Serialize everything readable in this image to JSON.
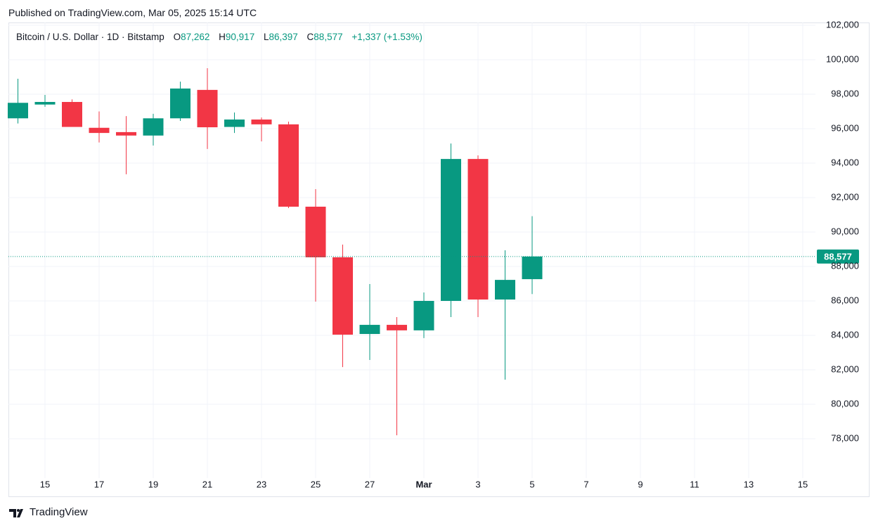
{
  "published": "Published on TradingView.com, Mar 05, 2025 15:14 UTC",
  "brand": "TradingView",
  "chart_data": {
    "type": "candlestick",
    "header": {
      "symbol": "Bitcoin / U.S. Dollar · 1D · Bitstamp",
      "open_key": "O",
      "open": "87,262",
      "high_key": "H",
      "high": "90,917",
      "low_key": "L",
      "low": "86,397",
      "close_key": "C",
      "close": "88,577",
      "change": "+1,337 (+1.53%)"
    },
    "categories": [
      null,
      "15",
      null,
      "17",
      null,
      "19",
      null,
      "21",
      null,
      "23",
      null,
      "25",
      null,
      "27",
      null,
      "Mar",
      null,
      "3",
      null,
      "5",
      null,
      "7",
      null,
      "9",
      null,
      "11",
      null,
      "13",
      null,
      "15"
    ],
    "open": [
      96600,
      97400,
      97550,
      96050,
      95800,
      95600,
      96600,
      98250,
      96100,
      96530,
      96250,
      91470,
      88530,
      84080,
      84610,
      84290,
      86000,
      94240,
      86080,
      87262,
      null,
      null,
      null,
      null,
      null,
      null,
      null,
      null,
      null,
      null
    ],
    "high": [
      98900,
      97960,
      97700,
      97000,
      96730,
      96860,
      98730,
      99510,
      96940,
      96650,
      96410,
      92490,
      89270,
      86980,
      85060,
      86490,
      95140,
      94450,
      88940,
      90917,
      null,
      null,
      null,
      null,
      null,
      null,
      null,
      null,
      null,
      null
    ],
    "low": [
      96300,
      97270,
      96100,
      95200,
      93350,
      95020,
      96450,
      94820,
      95750,
      95260,
      91390,
      85960,
      82160,
      82570,
      78200,
      83840,
      85060,
      85060,
      81430,
      86397,
      null,
      null,
      null,
      null,
      null,
      null,
      null,
      null,
      null,
      null
    ],
    "close": [
      97500,
      97550,
      96100,
      95750,
      95600,
      96600,
      98330,
      96080,
      96530,
      96250,
      91470,
      88530,
      84040,
      84610,
      84290,
      86000,
      94240,
      86080,
      87220,
      88577,
      null,
      null,
      null,
      null,
      null,
      null,
      null,
      null,
      null,
      null
    ],
    "up_color": "#089981",
    "down_color": "#f23645",
    "last_price": {
      "value": 88577,
      "label": "88,577"
    },
    "ylim": [
      75714,
      102163
    ],
    "yticks": [
      {
        "value": 78000,
        "label": "78,000"
      },
      {
        "value": 80000,
        "label": "80,000"
      },
      {
        "value": 82000,
        "label": "82,000"
      },
      {
        "value": 84000,
        "label": "84,000"
      },
      {
        "value": 86000,
        "label": "86,000"
      },
      {
        "value": 88000,
        "label": "88,000"
      },
      {
        "value": 90000,
        "label": "90,000"
      },
      {
        "value": 92000,
        "label": "92,000"
      },
      {
        "value": 94000,
        "label": "94,000"
      },
      {
        "value": 96000,
        "label": "96,000"
      },
      {
        "value": 98000,
        "label": "98,000"
      },
      {
        "value": 100000,
        "label": "100,000"
      },
      {
        "value": 102000,
        "label": "102,000"
      }
    ],
    "grid": true
  }
}
